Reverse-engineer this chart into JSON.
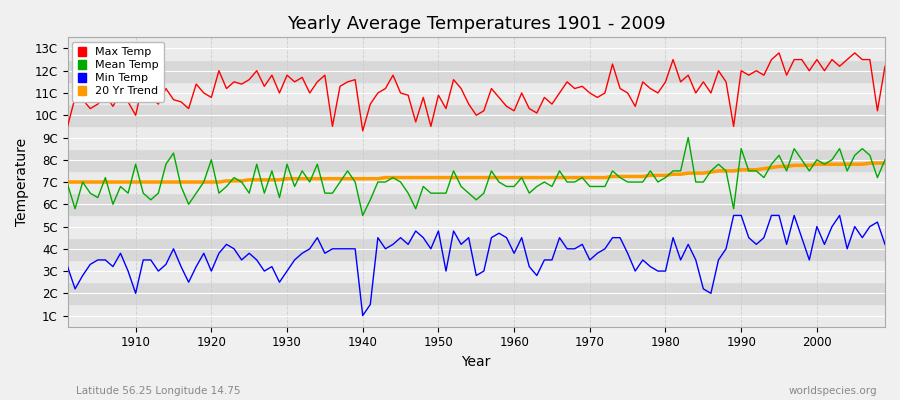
{
  "title": "Yearly Average Temperatures 1901 - 2009",
  "xlabel": "Year",
  "ylabel": "Temperature",
  "lat_lon_label": "Latitude 56.25 Longitude 14.75",
  "watermark": "worldspecies.org",
  "years": [
    1901,
    1902,
    1903,
    1904,
    1905,
    1906,
    1907,
    1908,
    1909,
    1910,
    1911,
    1912,
    1913,
    1914,
    1915,
    1916,
    1917,
    1918,
    1919,
    1920,
    1921,
    1922,
    1923,
    1924,
    1925,
    1926,
    1927,
    1928,
    1929,
    1930,
    1931,
    1932,
    1933,
    1934,
    1935,
    1936,
    1937,
    1938,
    1939,
    1940,
    1941,
    1942,
    1943,
    1944,
    1945,
    1946,
    1947,
    1948,
    1949,
    1950,
    1951,
    1952,
    1953,
    1954,
    1955,
    1956,
    1957,
    1958,
    1959,
    1960,
    1961,
    1962,
    1963,
    1964,
    1965,
    1966,
    1967,
    1968,
    1969,
    1970,
    1971,
    1972,
    1973,
    1974,
    1975,
    1976,
    1977,
    1978,
    1979,
    1980,
    1981,
    1982,
    1983,
    1984,
    1985,
    1986,
    1987,
    1988,
    1989,
    1990,
    1991,
    1992,
    1993,
    1994,
    1995,
    1996,
    1997,
    1998,
    1999,
    2000,
    2001,
    2002,
    2003,
    2004,
    2005,
    2006,
    2007,
    2008,
    2009
  ],
  "max_temp": [
    9.5,
    10.8,
    10.7,
    10.3,
    10.5,
    10.9,
    10.4,
    11.0,
    10.6,
    10.0,
    11.5,
    10.8,
    10.5,
    11.2,
    10.7,
    10.6,
    10.3,
    11.4,
    11.0,
    10.8,
    12.0,
    11.2,
    11.5,
    11.4,
    11.6,
    12.0,
    11.3,
    11.8,
    11.0,
    11.8,
    11.5,
    11.7,
    11.0,
    11.5,
    11.8,
    9.5,
    11.3,
    11.5,
    11.6,
    9.3,
    10.5,
    11.0,
    11.2,
    11.8,
    11.0,
    10.9,
    9.7,
    10.8,
    9.5,
    10.9,
    10.3,
    11.6,
    11.2,
    10.5,
    10.0,
    10.2,
    11.2,
    10.8,
    10.4,
    10.2,
    11.0,
    10.3,
    10.1,
    10.8,
    10.5,
    11.0,
    11.5,
    11.2,
    11.3,
    11.0,
    10.8,
    11.0,
    12.3,
    11.2,
    11.0,
    10.4,
    11.5,
    11.2,
    11.0,
    11.5,
    12.5,
    11.5,
    11.8,
    11.0,
    11.5,
    11.0,
    12.0,
    11.5,
    9.5,
    12.0,
    11.8,
    12.0,
    11.8,
    12.5,
    12.8,
    11.8,
    12.5,
    12.5,
    12.0,
    12.5,
    12.0,
    12.5,
    12.2,
    12.5,
    12.8,
    12.5,
    12.5,
    10.2,
    12.2
  ],
  "mean_temp": [
    6.9,
    5.8,
    7.0,
    6.5,
    6.3,
    7.2,
    6.0,
    6.8,
    6.5,
    7.8,
    6.5,
    6.2,
    6.5,
    7.8,
    8.3,
    6.8,
    6.0,
    6.5,
    7.0,
    8.0,
    6.5,
    6.8,
    7.2,
    7.0,
    6.5,
    7.8,
    6.5,
    7.5,
    6.3,
    7.8,
    6.8,
    7.5,
    7.0,
    7.8,
    6.5,
    6.5,
    7.0,
    7.5,
    7.0,
    5.5,
    6.2,
    7.0,
    7.0,
    7.2,
    7.0,
    6.5,
    5.8,
    6.8,
    6.5,
    6.5,
    6.5,
    7.5,
    6.8,
    6.5,
    6.2,
    6.5,
    7.5,
    7.0,
    6.8,
    6.8,
    7.2,
    6.5,
    6.8,
    7.0,
    6.8,
    7.5,
    7.0,
    7.0,
    7.2,
    6.8,
    6.8,
    6.8,
    7.5,
    7.2,
    7.0,
    7.0,
    7.0,
    7.5,
    7.0,
    7.2,
    7.5,
    7.5,
    9.0,
    7.0,
    7.0,
    7.5,
    7.8,
    7.5,
    5.8,
    8.5,
    7.5,
    7.5,
    7.2,
    7.8,
    8.2,
    7.5,
    8.5,
    8.0,
    7.5,
    8.0,
    7.8,
    8.0,
    8.5,
    7.5,
    8.2,
    8.5,
    8.2,
    7.2,
    8.0
  ],
  "min_temp": [
    3.2,
    2.2,
    2.8,
    3.3,
    3.5,
    3.5,
    3.2,
    3.8,
    3.0,
    2.0,
    3.5,
    3.5,
    3.0,
    3.3,
    4.0,
    3.2,
    2.5,
    3.2,
    3.8,
    3.0,
    3.8,
    4.2,
    4.0,
    3.5,
    3.8,
    3.5,
    3.0,
    3.2,
    2.5,
    3.0,
    3.5,
    3.8,
    4.0,
    4.5,
    3.8,
    4.0,
    4.0,
    4.0,
    4.0,
    1.0,
    1.5,
    4.5,
    4.0,
    4.2,
    4.5,
    4.2,
    4.8,
    4.5,
    4.0,
    4.8,
    3.0,
    4.8,
    4.2,
    4.5,
    2.8,
    3.0,
    4.5,
    4.7,
    4.5,
    3.8,
    4.5,
    3.2,
    2.8,
    3.5,
    3.5,
    4.5,
    4.0,
    4.0,
    4.2,
    3.5,
    3.8,
    4.0,
    4.5,
    4.5,
    3.8,
    3.0,
    3.5,
    3.2,
    3.0,
    3.0,
    4.5,
    3.5,
    4.2,
    3.5,
    2.2,
    2.0,
    3.5,
    4.0,
    5.5,
    5.5,
    4.5,
    4.2,
    4.5,
    5.5,
    5.5,
    4.2,
    5.5,
    4.5,
    3.5,
    5.0,
    4.2,
    5.0,
    5.5,
    4.0,
    5.0,
    4.5,
    5.0,
    5.2,
    4.2
  ],
  "trend": [
    7.0,
    7.0,
    7.0,
    7.0,
    7.0,
    7.0,
    7.0,
    7.0,
    7.0,
    7.0,
    7.0,
    7.0,
    7.0,
    7.0,
    7.0,
    7.0,
    7.0,
    7.0,
    7.0,
    7.0,
    7.0,
    7.05,
    7.05,
    7.05,
    7.1,
    7.1,
    7.1,
    7.1,
    7.1,
    7.15,
    7.15,
    7.15,
    7.15,
    7.15,
    7.15,
    7.15,
    7.15,
    7.15,
    7.15,
    7.15,
    7.15,
    7.15,
    7.2,
    7.2,
    7.2,
    7.2,
    7.2,
    7.2,
    7.2,
    7.2,
    7.2,
    7.2,
    7.2,
    7.2,
    7.2,
    7.2,
    7.2,
    7.2,
    7.2,
    7.2,
    7.2,
    7.2,
    7.2,
    7.2,
    7.2,
    7.2,
    7.2,
    7.2,
    7.2,
    7.2,
    7.2,
    7.2,
    7.25,
    7.25,
    7.25,
    7.25,
    7.25,
    7.3,
    7.3,
    7.3,
    7.35,
    7.35,
    7.4,
    7.4,
    7.4,
    7.45,
    7.5,
    7.5,
    7.5,
    7.55,
    7.55,
    7.55,
    7.6,
    7.65,
    7.7,
    7.7,
    7.75,
    7.75,
    7.75,
    7.8,
    7.8,
    7.8,
    7.8,
    7.8,
    7.8,
    7.8,
    7.85,
    7.85,
    7.85
  ],
  "max_color": "#ff0000",
  "mean_color": "#00aa00",
  "min_color": "#0000ff",
  "trend_color": "#ff9900",
  "band_light": "#ebebeb",
  "band_dark": "#d8d8d8",
  "fig_bg_color": "#f0f0f0",
  "grid_color": "#ffffff",
  "ytick_labels": [
    "1C",
    "2C",
    "3C",
    "4C",
    "5C",
    "6C",
    "7C",
    "8C",
    "9C",
    "10C",
    "11C",
    "12C",
    "13C"
  ],
  "ytick_values": [
    1,
    2,
    3,
    4,
    5,
    6,
    7,
    8,
    9,
    10,
    11,
    12,
    13
  ],
  "ylim": [
    0.5,
    13.5
  ],
  "xlim": [
    1901,
    2009
  ]
}
